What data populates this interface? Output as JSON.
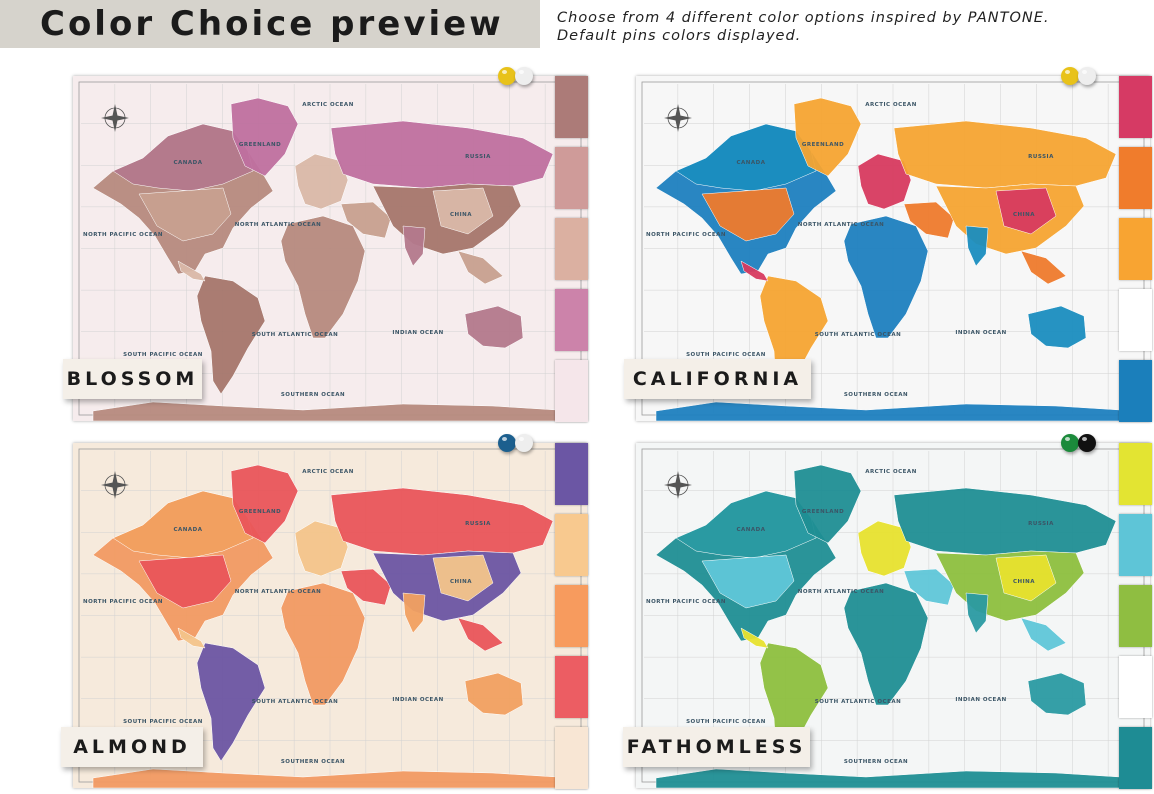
{
  "header": {
    "title": "Color Choice preview",
    "subtitle_line1": "Choose from 4 different color options inspired by PANTONE.",
    "subtitle_line2": "Default pins colors displayed."
  },
  "map_labels": {
    "arctic": "ARCTIC OCEAN",
    "north_atlantic": "NORTH ATLANTIC OCEAN",
    "north_pacific": "NORTH PACIFIC OCEAN",
    "south_atlantic": "SOUTH ATLANTIC OCEAN",
    "south_pacific": "SOUTH PACIFIC OCEAN",
    "indian": "INDIAN OCEAN",
    "southern": "SOUTHERN OCEAN",
    "greenland": "GREENLAND",
    "russia": "RUSSIA",
    "canada": "CANADA",
    "china": "CHINA"
  },
  "variants": [
    {
      "name": "BLOSSOM",
      "background": "#f6eced",
      "land": [
        "#b68a7e",
        "#c7a08f",
        "#a5766c",
        "#d9b8a8",
        "#b3798c"
      ],
      "greenland": "#bf709f",
      "russia": "#bf709f",
      "swatches": [
        "#ac7b78",
        "#cf9b99",
        "#dbb0a1",
        "#cc83aa",
        "#f5e6ea"
      ],
      "pins": [
        "#e8c21a",
        "#eeeeee"
      ]
    },
    {
      "name": "CALIFORNIA",
      "background": "#f7f7f7",
      "land": [
        "#1d7fbf",
        "#ee7a2c",
        "#f6a431",
        "#d73a5f",
        "#1a8dbf"
      ],
      "greenland": "#f6a431",
      "russia": "#f6a431",
      "swatches": [
        "#d63a64",
        "#f07c2c",
        "#f8a432",
        "#ffffff",
        "#1b7fbb"
      ],
      "pins": [
        "#e8c21a",
        "#eeeeee"
      ]
    },
    {
      "name": "ALMOND",
      "background": "#f6eadc",
      "land": [
        "#f19a62",
        "#e9555a",
        "#6c55a2",
        "#f3c48a",
        "#f1a060"
      ],
      "greenland": "#e9555a",
      "russia": "#e9555a",
      "swatches": [
        "#6b56a4",
        "#f8c98f",
        "#f79b5e",
        "#ec5d63",
        "#f8e6d4"
      ],
      "pins": [
        "#1c5f8e",
        "#eeeeee"
      ]
    },
    {
      "name": "FATHOMLESS",
      "background": "#f4f6f6",
      "land": [
        "#1f8e94",
        "#5fc6d8",
        "#8dbf3e",
        "#e7e12e",
        "#2a9aa2"
      ],
      "greenland": "#1f8e94",
      "russia": "#1f8e94",
      "swatches": [
        "#e3e432",
        "#5ec5d7",
        "#8fbe41",
        "#ffffff",
        "#1e8c94"
      ],
      "pins": [
        "#1b8a3b",
        "#111111"
      ]
    }
  ]
}
